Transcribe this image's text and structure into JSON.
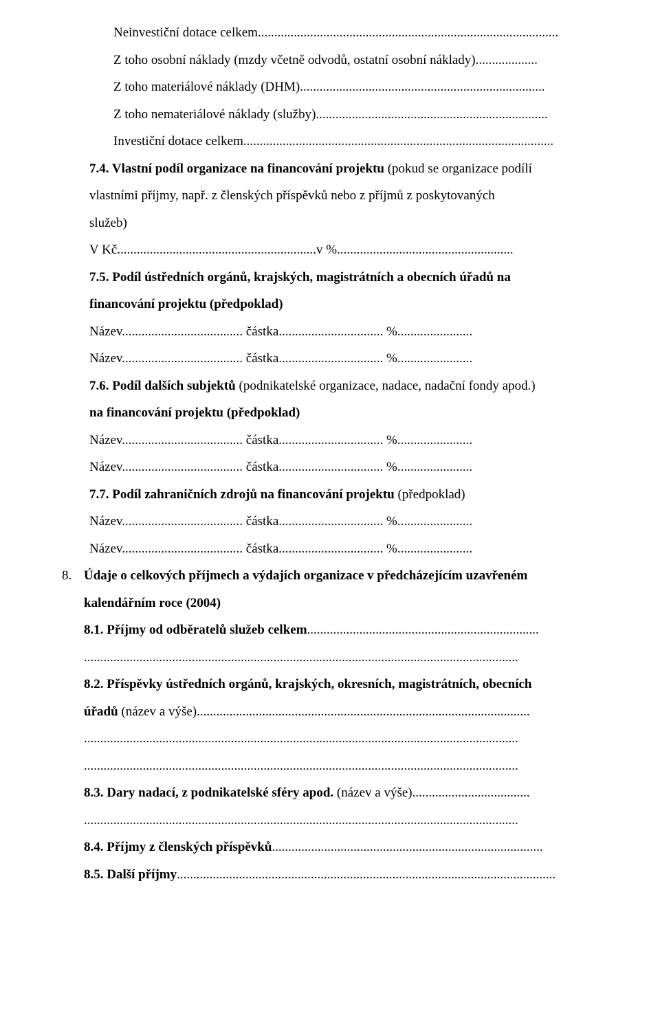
{
  "lines": {
    "l01": "Neinvestiční dotace celkem............................................................................................",
    "l02": "Z toho osobní náklady (mzdy včetně odvodů, ostatní osobní náklady)...................",
    "l03": "Z toho materiálové náklady (DHM)...........................................................................",
    "l04": "Z toho nemateriálové náklady (služby).......................................................................",
    "l05": "Investiční dotace celkem...............................................................................................",
    "l06a": "7.4. Vlastní podíl organizace na financování projektu ",
    "l06b": "(pokud se organizace podílí",
    "l07": "vlastními příjmy, např. z členských příspěvků nebo z příjmů z poskytovaných",
    "l08": "služeb)",
    "l09": "V Kč.............................................................v %......................................................",
    "l10": "7.5. Podíl ústředních orgánů, krajských, magistrátních a obecních úřadů na",
    "l11": "financování projektu (předpoklad)",
    "l12": "Název..................................... částka................................ %.......................",
    "l13": "Název..................................... částka................................ %.......................",
    "l14a": "7.6. Podíl dalších subjektů ",
    "l14b": "(podnikatelské organizace, nadace, nadační fondy apod.)",
    "l15": "na financování projektu (předpoklad)",
    "l16": "Název..................................... částka................................ %.......................",
    "l17": "Název..................................... částka................................ %.......................",
    "l18a": "7.7. Podíl zahraničních zdrojů na financování projektu ",
    "l18b": "(předpoklad)",
    "l19": "Název..................................... částka................................ %.......................",
    "l20": "Název..................................... částka................................ %.......................",
    "l21num": "8.",
    "l21": "Údaje o celkových  příjmech a výdajích organizace v předcházejícím uzavřeném",
    "l22": "kalendářním roce (2004)",
    "l23": "8.1. Příjmy od odběratelů služeb celkem",
    "l23d": ".......................................................................",
    "l24": ".....................................................................................................................................",
    "l25": "8.2. Příspěvky ústředních orgánů, krajských, okresních, magistrátních, obecních",
    "l26a": "úřadů ",
    "l26b": "(název a výše)",
    "l26c": "......................................................................................................",
    "l27": ".....................................................................................................................................",
    "l28": ".....................................................................................................................................",
    "l29a": "8.3. Dary nadací, z podnikatelské sféry apod. ",
    "l29b": "(název a výše)",
    "l29c": "....................................",
    "l30": ".....................................................................................................................................",
    "l31a": "8.4. Příjmy z členských příspěvků",
    "l31b": "...................................................................................",
    "l32a": "8.5. Další příjmy",
    "l32b": "...................................................................................................................."
  }
}
